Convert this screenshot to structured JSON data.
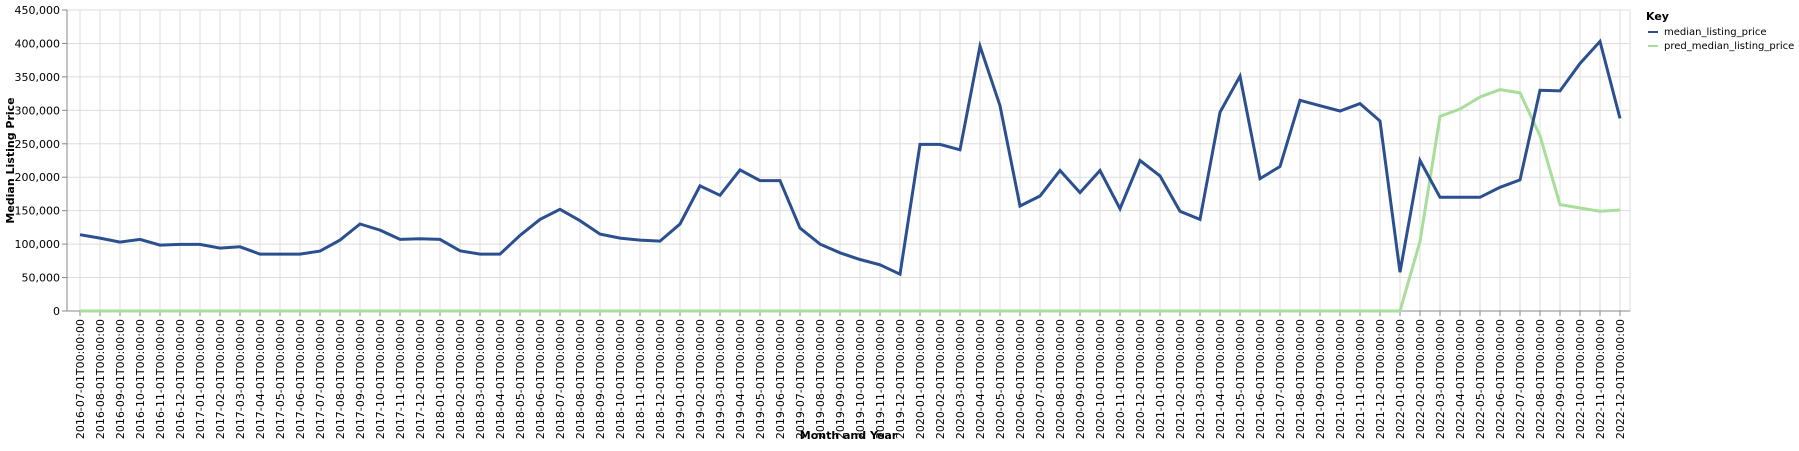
{
  "chart_data": {
    "type": "line",
    "xlabel": "Month and Year",
    "ylabel": "Median Listing Price",
    "ylim": [
      0,
      450000
    ],
    "y_ticks": [
      0,
      50000,
      100000,
      150000,
      200000,
      250000,
      300000,
      350000,
      400000,
      450000
    ],
    "y_tick_labels": [
      "0",
      "50,000",
      "100,000",
      "150,000",
      "200,000",
      "250,000",
      "300,000",
      "350,000",
      "400,000",
      "450,000"
    ],
    "grid": true,
    "legend": {
      "title": "Key",
      "position": "top-right"
    },
    "categories": [
      "2016-07-01T00:00:00",
      "2016-08-01T00:00:00",
      "2016-09-01T00:00:00",
      "2016-10-01T00:00:00",
      "2016-11-01T00:00:00",
      "2016-12-01T00:00:00",
      "2017-01-01T00:00:00",
      "2017-02-01T00:00:00",
      "2017-03-01T00:00:00",
      "2017-04-01T00:00:00",
      "2017-05-01T00:00:00",
      "2017-06-01T00:00:00",
      "2017-07-01T00:00:00",
      "2017-08-01T00:00:00",
      "2017-09-01T00:00:00",
      "2017-10-01T00:00:00",
      "2017-11-01T00:00:00",
      "2017-12-01T00:00:00",
      "2018-01-01T00:00:00",
      "2018-02-01T00:00:00",
      "2018-03-01T00:00:00",
      "2018-04-01T00:00:00",
      "2018-05-01T00:00:00",
      "2018-06-01T00:00:00",
      "2018-07-01T00:00:00",
      "2018-08-01T00:00:00",
      "2018-09-01T00:00:00",
      "2018-10-01T00:00:00",
      "2018-11-01T00:00:00",
      "2018-12-01T00:00:00",
      "2019-01-01T00:00:00",
      "2019-02-01T00:00:00",
      "2019-03-01T00:00:00",
      "2019-04-01T00:00:00",
      "2019-05-01T00:00:00",
      "2019-06-01T00:00:00",
      "2019-07-01T00:00:00",
      "2019-08-01T00:00:00",
      "2019-09-01T00:00:00",
      "2019-10-01T00:00:00",
      "2019-11-01T00:00:00",
      "2019-12-01T00:00:00",
      "2020-01-01T00:00:00",
      "2020-02-01T00:00:00",
      "2020-03-01T00:00:00",
      "2020-04-01T00:00:00",
      "2020-05-01T00:00:00",
      "2020-06-01T00:00:00",
      "2020-07-01T00:00:00",
      "2020-08-01T00:00:00",
      "2020-09-01T00:00:00",
      "2020-10-01T00:00:00",
      "2020-11-01T00:00:00",
      "2020-12-01T00:00:00",
      "2021-01-01T00:00:00",
      "2021-02-01T00:00:00",
      "2021-03-01T00:00:00",
      "2021-04-01T00:00:00",
      "2021-05-01T00:00:00",
      "2021-06-01T00:00:00",
      "2021-07-01T00:00:00",
      "2021-08-01T00:00:00",
      "2021-09-01T00:00:00",
      "2021-10-01T00:00:00",
      "2021-11-01T00:00:00",
      "2021-12-01T00:00:00",
      "2022-01-01T00:00:00",
      "2022-02-01T00:00:00",
      "2022-03-01T00:00:00",
      "2022-04-01T00:00:00",
      "2022-05-01T00:00:00",
      "2022-06-01T00:00:00",
      "2022-07-01T00:00:00",
      "2022-08-01T00:00:00",
      "2022-09-01T00:00:00",
      "2022-10-01T00:00:00",
      "2022-11-01T00:00:00",
      "2022-12-01T00:00:00"
    ],
    "series": [
      {
        "name": "median_listing_price",
        "color": "#2b4f8f",
        "values": [
          114000,
          109000,
          103000,
          107000,
          98500,
          99500,
          99500,
          94000,
          96000,
          85000,
          85000,
          85000,
          89500,
          106000,
          130000,
          121000,
          107000,
          108000,
          107000,
          90000,
          85000,
          85000,
          113000,
          137000,
          152000,
          135000,
          115000,
          109000,
          106000,
          104500,
          130000,
          187000,
          173000,
          211000,
          195000,
          195000,
          124000,
          100000,
          87000,
          77000,
          69000,
          55000,
          249000,
          249000,
          241000,
          396000,
          307000,
          157000,
          172000,
          210000,
          177000,
          210000,
          153000,
          225000,
          202000,
          149000,
          137000,
          297000,
          351000,
          198000,
          216000,
          315000,
          307000,
          299000,
          310000,
          284000,
          58000,
          225000,
          170000,
          170000,
          170000,
          185000,
          196000,
          330000,
          329000,
          370000,
          403000,
          288000
        ]
      },
      {
        "name": "pred_median_listing_price",
        "color": "#a8dd9b",
        "values": [
          0,
          0,
          0,
          0,
          0,
          0,
          0,
          0,
          0,
          0,
          0,
          0,
          0,
          0,
          0,
          0,
          0,
          0,
          0,
          0,
          0,
          0,
          0,
          0,
          0,
          0,
          0,
          0,
          0,
          0,
          0,
          0,
          0,
          0,
          0,
          0,
          0,
          0,
          0,
          0,
          0,
          0,
          0,
          0,
          0,
          0,
          0,
          0,
          0,
          0,
          0,
          0,
          0,
          0,
          0,
          0,
          0,
          0,
          0,
          0,
          0,
          0,
          0,
          0,
          0,
          0,
          0,
          104000,
          291000,
          302000,
          320000,
          331000,
          326000,
          262000,
          159000,
          154000,
          149000,
          151000
        ]
      }
    ]
  }
}
